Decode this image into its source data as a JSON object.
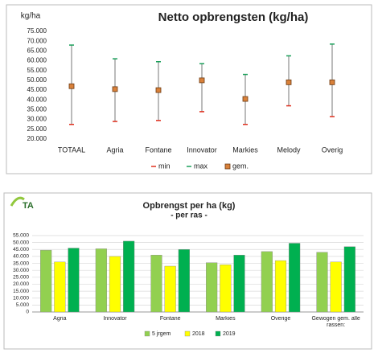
{
  "chart_data": [
    {
      "type": "errorbar",
      "title": "Netto opbrengsten (kg/ha)",
      "y_label": "kg/ha",
      "categories": [
        "TOTAAL",
        "Agria",
        "Fontane",
        "Innovator",
        "Markies",
        "Melody",
        "Overig"
      ],
      "series": [
        {
          "name": "min",
          "color": "#e0301e",
          "values": [
            27500,
            29000,
            29500,
            34000,
            27500,
            37000,
            31500
          ]
        },
        {
          "name": "max",
          "color": "#1aa05a",
          "values": [
            68000,
            61000,
            59500,
            58500,
            53000,
            62500,
            68500
          ]
        },
        {
          "name": "gem.",
          "color": "#d9813a",
          "values": [
            47000,
            45500,
            45000,
            50000,
            40500,
            49000,
            49000
          ]
        }
      ],
      "ylim": [
        20000,
        75000
      ],
      "yticks": [
        {
          "value": 20000,
          "label": "20.000"
        },
        {
          "value": 25000,
          "label": "25.000"
        },
        {
          "value": 30000,
          "label": "30.000"
        },
        {
          "value": 35000,
          "label": "35.000"
        },
        {
          "value": 40000,
          "label": "40.000"
        },
        {
          "value": 45000,
          "label": "45.000"
        },
        {
          "value": 50000,
          "label": "50.000"
        },
        {
          "value": 55000,
          "label": "55.000"
        },
        {
          "value": 60000,
          "label": "60.000"
        },
        {
          "value": 65000,
          "label": "65.000"
        },
        {
          "value": 70000,
          "label": "70.000"
        },
        {
          "value": 75000,
          "label": "75.000"
        }
      ],
      "grid": false,
      "legend": "bottom"
    },
    {
      "type": "bar",
      "logo": "TA",
      "title": "Opbrengst per ha (kg)",
      "subtitle": "- per ras -",
      "categories": [
        "Agria",
        "Innovator",
        "Fontane",
        "Markies",
        "Overige",
        "Gewogen gem. alle rassen:"
      ],
      "series": [
        {
          "name": "5 jrgem",
          "color": "#92d050",
          "values": [
            44500,
            45500,
            41000,
            35500,
            43500,
            43000
          ]
        },
        {
          "name": "2018",
          "color": "#ffff00",
          "values": [
            36000,
            40000,
            33000,
            34000,
            37000,
            36000
          ]
        },
        {
          "name": "2019",
          "color": "#00b050",
          "values": [
            46000,
            51000,
            45000,
            41000,
            49500,
            47000
          ]
        }
      ],
      "ylim": [
        0,
        55000
      ],
      "yticks": [
        0,
        {
          "value": 5000,
          "label": "5.000"
        },
        {
          "value": 10000,
          "label": "10.000"
        },
        {
          "value": 15000,
          "label": "15.000"
        },
        {
          "value": 20000,
          "label": "20.000"
        },
        {
          "value": 25000,
          "label": "25.000"
        },
        {
          "value": 30000,
          "label": "30.000"
        },
        {
          "value": 35000,
          "label": "35.000"
        },
        {
          "value": 40000,
          "label": "40.000"
        },
        {
          "value": 45000,
          "label": "45.000"
        },
        {
          "value": 50000,
          "label": "50.000"
        },
        {
          "value": 55000,
          "label": "55.000"
        }
      ],
      "grid": true,
      "legend": "bottom"
    }
  ]
}
